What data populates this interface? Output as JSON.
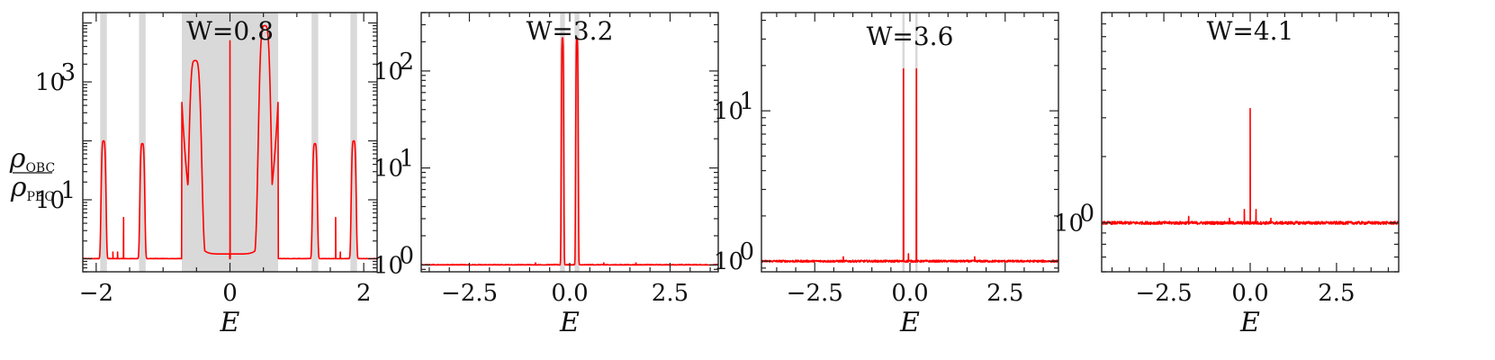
{
  "ylabel": {
    "num": "ρ",
    "num_sub": "OBC",
    "den": "ρ",
    "den_sub": "PBC"
  },
  "chart_data": [
    {
      "type": "line",
      "title": "W=0.8",
      "xlabel": "E",
      "ylabel": "ρ_OBC / ρ_PBC",
      "yscale": "log",
      "xlim": [
        -2.2,
        2.2
      ],
      "ylim": [
        0.6,
        15000
      ],
      "xticks": [
        {
          "v": -2,
          "label": "−2"
        },
        {
          "v": 0,
          "label": "0"
        },
        {
          "v": 2,
          "label": "2"
        }
      ],
      "yticks": [
        {
          "v": 10,
          "label": "10",
          "exp": "1"
        },
        {
          "v": 1000,
          "label": "10",
          "exp": "3"
        }
      ],
      "shaded_bands": [
        [
          -1.94,
          -1.84
        ],
        [
          -1.36,
          -1.26
        ],
        [
          -0.72,
          0.72
        ],
        [
          1.22,
          1.32
        ],
        [
          1.8,
          1.9
        ]
      ],
      "baseline": 1.0,
      "peaks": [
        {
          "x": -1.89,
          "y": 100,
          "kind": "lobe",
          "w": 0.035
        },
        {
          "x": -1.31,
          "y": 90,
          "kind": "lobe",
          "w": 0.035
        },
        {
          "x": -1.75,
          "y": 1.3,
          "kind": "spike"
        },
        {
          "x": -1.68,
          "y": 1.3,
          "kind": "spike"
        },
        {
          "x": -1.59,
          "y": 5,
          "kind": "spike"
        },
        {
          "x": -0.52,
          "y": 2300,
          "kind": "lobe",
          "w": 0.09
        },
        {
          "x": 0.52,
          "y": 9000,
          "kind": "lobe",
          "w": 0.09
        },
        {
          "x": 0.0,
          "y": 5000,
          "kind": "spike"
        },
        {
          "x": 1.27,
          "y": 90,
          "kind": "lobe",
          "w": 0.035
        },
        {
          "x": 1.58,
          "y": 5,
          "kind": "spike"
        },
        {
          "x": 1.65,
          "y": 1.3,
          "kind": "spike"
        },
        {
          "x": 1.85,
          "y": 100,
          "kind": "lobe",
          "w": 0.035
        }
      ]
    },
    {
      "type": "line",
      "title": "W=3.2",
      "xlabel": "E",
      "ylabel": "ρ_OBC / ρ_PBC",
      "yscale": "log",
      "xlim": [
        -3.7,
        3.7
      ],
      "ylim": [
        0.85,
        400
      ],
      "xticks": [
        {
          "v": -2.5,
          "label": "−2.5"
        },
        {
          "v": 0,
          "label": "0.0"
        },
        {
          "v": 2.5,
          "label": "2.5"
        }
      ],
      "yticks": [
        {
          "v": 1,
          "label": "10",
          "exp": "0"
        },
        {
          "v": 10,
          "label": "10",
          "exp": "1"
        },
        {
          "v": 100,
          "label": "10",
          "exp": "2"
        }
      ],
      "shaded_bands": [
        [
          -0.24,
          -0.12
        ],
        [
          0.12,
          0.24
        ]
      ],
      "baseline": 1.0,
      "peaks": [
        {
          "x": -0.18,
          "y": 220,
          "kind": "lobe",
          "w": 0.03
        },
        {
          "x": 0.18,
          "y": 220,
          "kind": "lobe",
          "w": 0.03
        },
        {
          "x": -0.85,
          "y": 1.05,
          "kind": "spike"
        },
        {
          "x": 0.85,
          "y": 1.05,
          "kind": "spike"
        },
        {
          "x": 1.65,
          "y": 1.05,
          "kind": "spike"
        }
      ]
    },
    {
      "type": "line",
      "title": "W=3.6",
      "xlabel": "E",
      "ylabel": "ρ_OBC / ρ_PBC",
      "yscale": "log",
      "xlim": [
        -3.9,
        3.9
      ],
      "ylim": [
        0.85,
        45
      ],
      "xticks": [
        {
          "v": -2.5,
          "label": "−2.5"
        },
        {
          "v": 0,
          "label": "0.0"
        },
        {
          "v": 2.5,
          "label": "2.5"
        }
      ],
      "yticks": [
        {
          "v": 1,
          "label": "10",
          "exp": "0"
        },
        {
          "v": 10,
          "label": "10",
          "exp": "1"
        }
      ],
      "shaded_bands": [
        [
          -0.2,
          -0.14
        ],
        [
          0.14,
          0.2
        ]
      ],
      "baseline": 1.0,
      "peaks": [
        {
          "x": -0.17,
          "y": 19,
          "kind": "spike"
        },
        {
          "x": 0.17,
          "y": 19,
          "kind": "spike"
        },
        {
          "x": -0.04,
          "y": 1.12,
          "kind": "spike"
        },
        {
          "x": -1.75,
          "y": 1.07,
          "kind": "spike"
        },
        {
          "x": 1.7,
          "y": 1.07,
          "kind": "spike"
        }
      ]
    },
    {
      "type": "line",
      "title": "W=4.1",
      "xlabel": "E",
      "ylabel": "ρ_OBC / ρ_PBC",
      "yscale": "log",
      "xlim": [
        -4.3,
        4.3
      ],
      "ylim": [
        0.6,
        9
      ],
      "xticks": [
        {
          "v": -2.5,
          "label": "−2.5"
        },
        {
          "v": 0,
          "label": "0.0"
        },
        {
          "v": 2.5,
          "label": "2.5"
        }
      ],
      "yticks": [
        {
          "v": 1,
          "label": "10",
          "exp": "0"
        }
      ],
      "shaded_bands": [],
      "baseline": 1.0,
      "peaks": [
        {
          "x": 0.0,
          "y": 3.3,
          "kind": "spike"
        },
        {
          "x": -0.17,
          "y": 1.15,
          "kind": "spike"
        },
        {
          "x": 0.17,
          "y": 1.15,
          "kind": "spike"
        },
        {
          "x": -1.78,
          "y": 1.07,
          "kind": "spike"
        },
        {
          "x": -0.6,
          "y": 1.05,
          "kind": "spike"
        },
        {
          "x": 0.6,
          "y": 1.05,
          "kind": "spike"
        }
      ]
    }
  ]
}
